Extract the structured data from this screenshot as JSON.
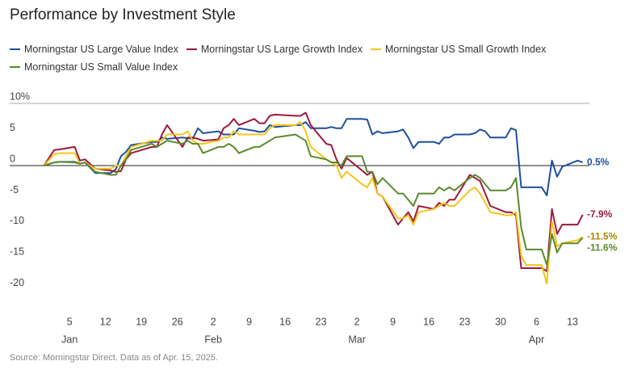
{
  "chart_data": {
    "type": "line",
    "title": "Performance by Investment Style",
    "source": "Source: Morningstar Direct. Data as of Apr. 15, 2025.",
    "x": [
      0,
      2,
      3,
      6,
      7,
      8,
      10,
      13,
      14,
      15,
      16,
      17,
      21,
      22,
      23,
      24,
      27,
      28,
      29,
      30,
      31,
      34,
      35,
      36,
      37,
      38,
      41,
      42,
      43,
      44,
      45,
      49,
      50,
      51,
      52,
      55,
      56,
      57,
      58,
      59,
      62,
      63,
      64,
      65,
      66,
      69,
      70,
      71,
      72,
      73,
      76,
      77,
      78,
      79,
      80,
      83,
      84,
      85,
      86,
      87,
      90,
      91,
      92,
      93,
      94,
      97,
      98,
      99,
      100,
      101,
      104,
      105
    ],
    "xlim": [
      -0.7,
      106.3
    ],
    "xticks": [
      {
        "value": 5,
        "label": "5"
      },
      {
        "value": 12,
        "label": "12"
      },
      {
        "value": 19,
        "label": "19"
      },
      {
        "value": 26,
        "label": "26"
      },
      {
        "value": 33,
        "label": "2"
      },
      {
        "value": 40,
        "label": "9"
      },
      {
        "value": 47,
        "label": "16"
      },
      {
        "value": 54,
        "label": "23"
      },
      {
        "value": 61,
        "label": "2"
      },
      {
        "value": 68,
        "label": "9"
      },
      {
        "value": 75,
        "label": "16"
      },
      {
        "value": 82,
        "label": "23"
      },
      {
        "value": 89,
        "label": "30"
      },
      {
        "value": 96,
        "label": "6"
      },
      {
        "value": 103,
        "label": "13"
      }
    ],
    "xmonths": [
      {
        "value": 5,
        "label": "Jan"
      },
      {
        "value": 33,
        "label": "Feb"
      },
      {
        "value": 61,
        "label": "Mar"
      },
      {
        "value": 96,
        "label": "Apr"
      }
    ],
    "ylim": [
      -23,
      10
    ],
    "yticks": [
      {
        "value": 10,
        "label": "10%"
      },
      5,
      0,
      -5,
      -10,
      -15,
      -20
    ],
    "series": [
      {
        "name": "Morningstar US Large Value Index",
        "color": "#1f4f9f",
        "label_color": "#1f4f9f",
        "last_label": "0.5%",
        "values": [
          0,
          0.5,
          0.6,
          0.6,
          0.3,
          0.5,
          -1.2,
          -1.2,
          -0.6,
          1.5,
          2.2,
          3.3,
          3.8,
          3.8,
          4.5,
          4.3,
          4.5,
          4.4,
          4.3,
          6.0,
          5.2,
          5.5,
          5.0,
          5.0,
          5.0,
          6.0,
          5.6,
          5.4,
          5.5,
          6.5,
          6.2,
          6.5,
          6.5,
          7.0,
          6.0,
          6.0,
          6.2,
          6.0,
          6.0,
          7.5,
          7.5,
          7.4,
          5.0,
          5.5,
          5.2,
          5.5,
          5.8,
          4.5,
          2.8,
          3.8,
          3.8,
          3.5,
          4.5,
          4.5,
          5.0,
          5.0,
          5.2,
          5.8,
          5.5,
          4.5,
          4.5,
          6.0,
          5.7,
          -3.5,
          -3.5,
          -3.5,
          -4.8,
          0.8,
          -1.8,
          -0.2,
          0.8,
          0.5
        ]
      },
      {
        "name": "Morningstar US Large Growth Index",
        "color": "#9c1a3c",
        "label_color": "#9c1a3c",
        "last_label": "-7.9%",
        "values": [
          0,
          2.5,
          2.6,
          3.0,
          0.8,
          1.0,
          -0.5,
          -0.8,
          -1.0,
          -0.9,
          1.0,
          2.0,
          3.0,
          3.0,
          5.0,
          6.5,
          3.0,
          4.5,
          4.5,
          4.3,
          4.0,
          4.2,
          6.0,
          6.5,
          7.5,
          6.5,
          7.5,
          6.8,
          6.8,
          8.0,
          8.2,
          8.0,
          8.0,
          8.5,
          6.5,
          3.5,
          3.3,
          1.0,
          -0.5,
          1.2,
          -0.8,
          -1.5,
          -1.0,
          -4.5,
          -5.0,
          -9.5,
          -8.5,
          -7.5,
          -9.0,
          -6.5,
          -7.0,
          -6.0,
          -6.5,
          -5.5,
          -5.5,
          -1.5,
          -2.0,
          -2.5,
          -4.5,
          -6.5,
          -7.5,
          -7.5,
          -8.0,
          -16.5,
          -16.5,
          -16.5,
          -17.0,
          -7.0,
          -11.0,
          -9.5,
          -9.5,
          -7.9
        ]
      },
      {
        "name": "Morningstar US Small Growth Index",
        "color": "#f3c519",
        "label_color": "#a98600",
        "last_label": "-11.5%",
        "values": [
          0,
          1.8,
          2.0,
          2.0,
          0.3,
          0.5,
          -0.5,
          -0.5,
          0.0,
          0.0,
          1.5,
          3.0,
          4.0,
          4.0,
          4.0,
          5.0,
          5.0,
          5.5,
          4.0,
          3.5,
          3.5,
          4.0,
          4.5,
          4.5,
          5.5,
          5.0,
          5.0,
          5.0,
          5.0,
          6.0,
          6.5,
          6.5,
          7.0,
          5.5,
          3.0,
          1.0,
          0.5,
          0.0,
          -2.0,
          -1.0,
          -3.0,
          -3.5,
          -2.0,
          -4.5,
          -5.0,
          -8.5,
          -8.5,
          -8.0,
          -9.5,
          -7.5,
          -7.0,
          -6.5,
          -6.0,
          -6.5,
          -6.5,
          -4.0,
          -3.5,
          -4.5,
          -6.0,
          -7.5,
          -8.0,
          -8.0,
          -7.5,
          -14.5,
          -16.0,
          -16.0,
          -19.0,
          -9.0,
          -13.0,
          -12.5,
          -12.0,
          -11.5
        ]
      },
      {
        "name": "Morningstar US Small Value Index",
        "color": "#5b8a2c",
        "label_color": "#5b8a2c",
        "last_label": "-11.6%",
        "values": [
          0,
          0.5,
          0.6,
          0.5,
          0.3,
          0.5,
          -1.0,
          -1.5,
          -1.5,
          0.0,
          1.0,
          2.5,
          3.5,
          3.0,
          3.5,
          4.0,
          3.5,
          4.0,
          3.5,
          3.5,
          2.0,
          3.0,
          3.0,
          3.5,
          3.0,
          2.0,
          3.0,
          3.0,
          3.5,
          4.0,
          4.5,
          5.0,
          4.5,
          4.0,
          1.5,
          1.0,
          0.5,
          0.5,
          0.0,
          1.5,
          1.5,
          -1.0,
          -1.0,
          -3.0,
          -2.0,
          -4.5,
          -4.5,
          -5.5,
          -6.5,
          -4.5,
          -4.5,
          -3.5,
          -4.0,
          -3.5,
          -4.0,
          -2.0,
          -1.5,
          -2.0,
          -3.0,
          -4.0,
          -4.0,
          -3.5,
          -2.0,
          -10.0,
          -13.5,
          -13.5,
          -16.0,
          -11.0,
          -14.0,
          -12.5,
          -12.5,
          -11.6
        ]
      }
    ]
  }
}
